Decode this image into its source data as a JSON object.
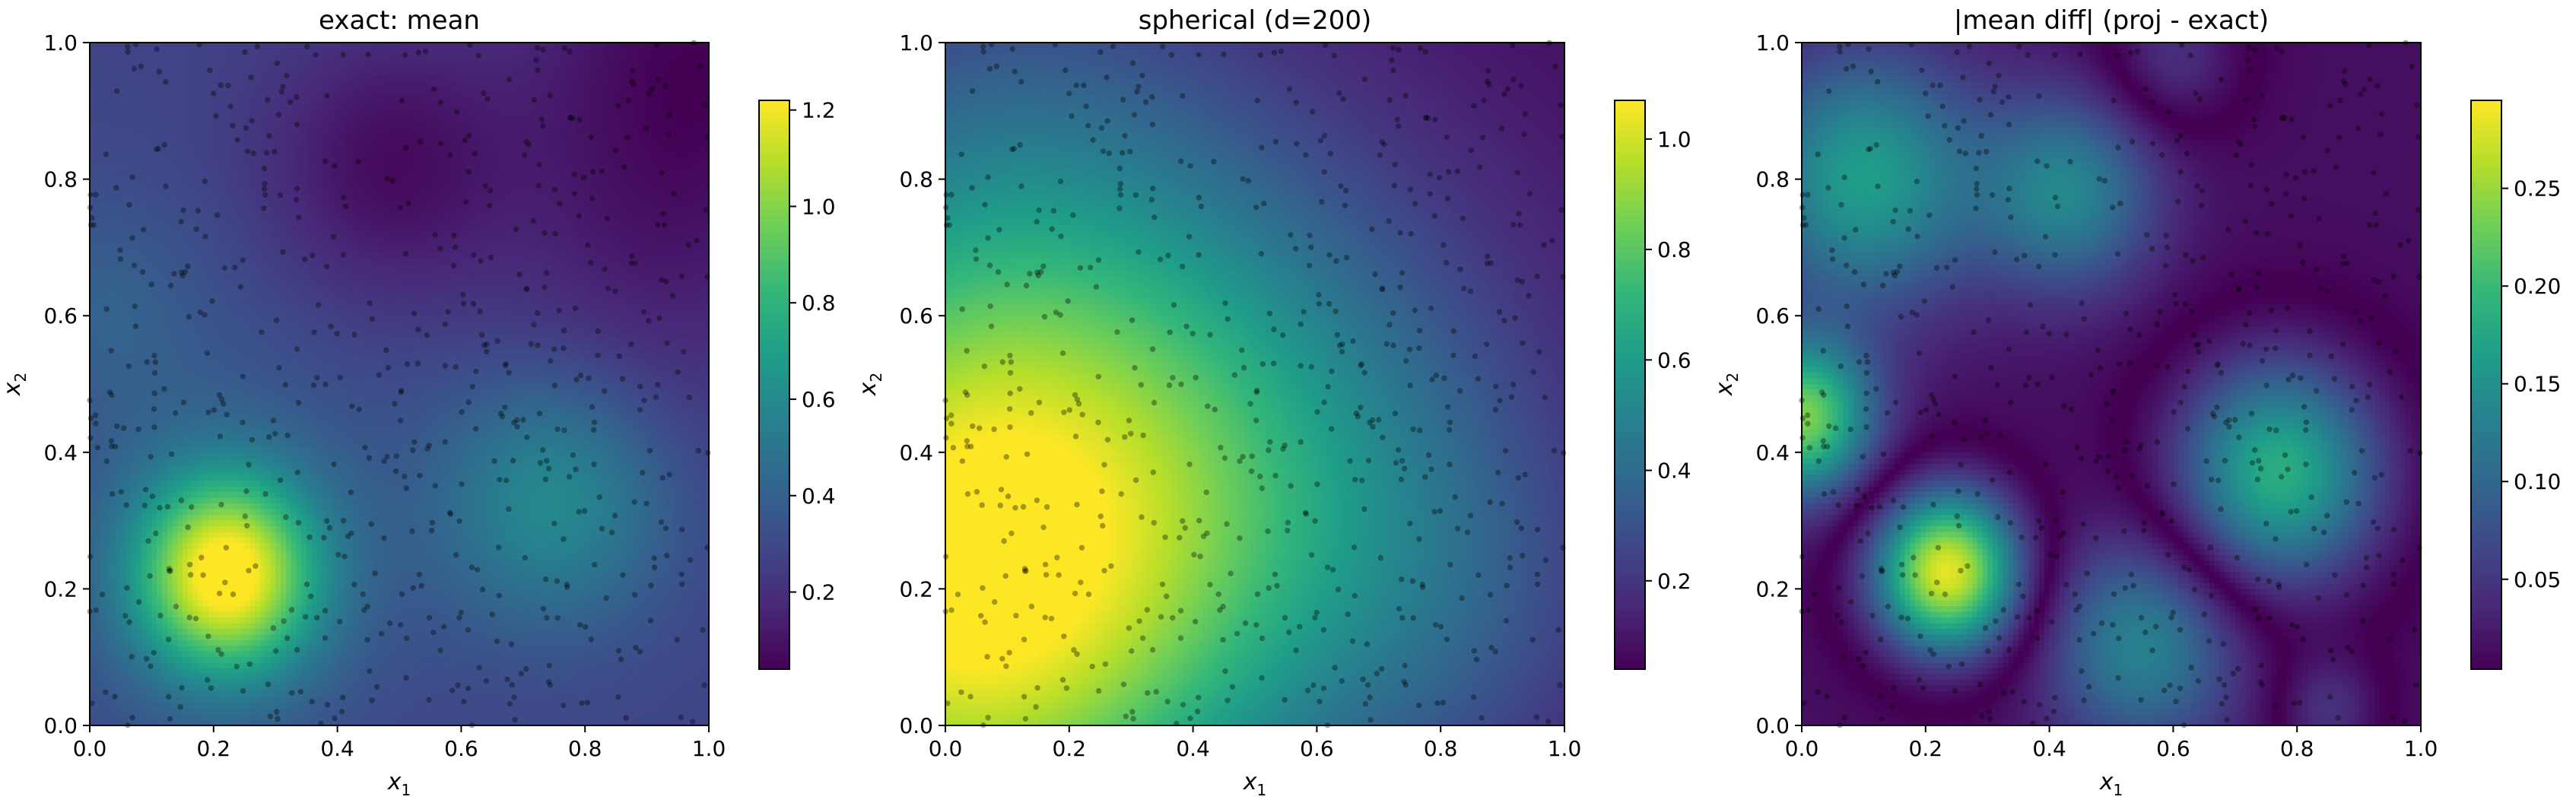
{
  "chart_data": [
    {
      "type": "heatmap",
      "title": "exact: mean",
      "xlabel": "x",
      "xlabel_sub": "1",
      "ylabel": "x",
      "ylabel_sub": "2",
      "xlim": [
        0,
        1
      ],
      "ylim": [
        0,
        1
      ],
      "xticks": [
        "0.0",
        "0.2",
        "0.4",
        "0.6",
        "0.8",
        "1.0"
      ],
      "yticks": [
        "0.0",
        "0.2",
        "0.4",
        "0.6",
        "0.8",
        "1.0"
      ],
      "colormap": "viridis",
      "colorbar": {
        "min": 0.04,
        "max": 1.22,
        "ticks": [
          0.2,
          0.4,
          0.6,
          0.8,
          1.0,
          1.2
        ],
        "tick_labels": [
          "0.2",
          "0.4",
          "0.6",
          "0.8",
          "1.0",
          "1.2"
        ]
      },
      "field": {
        "base": 0.28,
        "bumps": [
          {
            "x": 0.22,
            "y": 0.22,
            "a": 0.92,
            "s": 0.1
          },
          {
            "x": 0.22,
            "y": 0.27,
            "a": 0.12,
            "s": 0.22
          },
          {
            "x": 0.75,
            "y": 0.33,
            "a": 0.32,
            "s": 0.13
          },
          {
            "x": 0.48,
            "y": 0.82,
            "a": -0.2,
            "s": 0.14
          },
          {
            "x": 0.98,
            "y": 0.98,
            "a": -0.22,
            "s": 0.2
          },
          {
            "x": 0.9,
            "y": 0.65,
            "a": -0.1,
            "s": 0.18
          },
          {
            "x": 0.02,
            "y": 0.62,
            "a": 0.1,
            "s": 0.12
          }
        ]
      },
      "grid": false
    },
    {
      "type": "heatmap",
      "title": "spherical (d=200)",
      "xlabel": "x",
      "xlabel_sub": "1",
      "ylabel": "x",
      "ylabel_sub": "2",
      "xlim": [
        0,
        1
      ],
      "ylim": [
        0,
        1
      ],
      "xticks": [
        "0.0",
        "0.2",
        "0.4",
        "0.6",
        "0.8",
        "1.0"
      ],
      "yticks": [
        "0.0",
        "0.2",
        "0.4",
        "0.6",
        "0.8",
        "1.0"
      ],
      "colormap": "viridis",
      "colorbar": {
        "min": 0.04,
        "max": 1.07,
        "ticks": [
          0.2,
          0.4,
          0.6,
          0.8,
          1.0
        ],
        "tick_labels": [
          "0.2",
          "0.4",
          "0.6",
          "0.8",
          "1.0"
        ]
      },
      "field": {
        "base": 0.08,
        "bumps": [
          {
            "x": 0.02,
            "y": 0.2,
            "a": 0.98,
            "s": 0.34
          },
          {
            "x": 0.55,
            "y": 0.38,
            "a": 0.32,
            "s": 0.3
          },
          {
            "x": 0.12,
            "y": 0.75,
            "a": 0.22,
            "s": 0.3
          },
          {
            "x": 0.85,
            "y": 0.15,
            "a": 0.1,
            "s": 0.2
          }
        ]
      },
      "grid": false
    },
    {
      "type": "heatmap",
      "title": "|mean diff| (proj - exact)",
      "xlabel": "x",
      "xlabel_sub": "1",
      "ylabel": "x",
      "ylabel_sub": "2",
      "xlim": [
        0,
        1
      ],
      "ylim": [
        0,
        1
      ],
      "xticks": [
        "0.0",
        "0.2",
        "0.4",
        "0.6",
        "0.8",
        "1.0"
      ],
      "yticks": [
        "0.0",
        "0.2",
        "0.4",
        "0.6",
        "0.8",
        "1.0"
      ],
      "colormap": "viridis",
      "colorbar": {
        "min": 0.004,
        "max": 0.295,
        "ticks": [
          0.05,
          0.1,
          0.15,
          0.2,
          0.25
        ],
        "tick_labels": [
          "0.05",
          "0.10",
          "0.15",
          "0.20",
          "0.25"
        ]
      },
      "field": {
        "mode": "absdiff",
        "base": -0.015,
        "bumps": [
          {
            "x": 0.235,
            "y": 0.225,
            "a": 0.3,
            "s": 0.085
          },
          {
            "x": 0.77,
            "y": 0.37,
            "a": 0.2,
            "s": 0.12
          },
          {
            "x": 0.1,
            "y": 0.8,
            "a": -0.15,
            "s": 0.13
          },
          {
            "x": 0.43,
            "y": 0.78,
            "a": -0.12,
            "s": 0.1
          },
          {
            "x": 0.0,
            "y": 0.45,
            "a": -0.22,
            "s": 0.08
          },
          {
            "x": 0.55,
            "y": 0.12,
            "a": -0.12,
            "s": 0.11
          },
          {
            "x": 0.85,
            "y": 0.02,
            "a": 0.06,
            "s": 0.06
          },
          {
            "x": 0.6,
            "y": 0.98,
            "a": 0.06,
            "s": 0.08
          }
        ]
      },
      "grid": false
    }
  ],
  "scatter_points": {
    "count": 620,
    "seed": 7,
    "color": "#000000",
    "alpha": 0.35,
    "radius_data": 0.0045
  },
  "colors": {
    "viridis": [
      "#440154",
      "#482878",
      "#3e4a89",
      "#31688e",
      "#26828e",
      "#1f9e89",
      "#35b779",
      "#6ece58",
      "#b5de2b",
      "#fde725"
    ]
  }
}
